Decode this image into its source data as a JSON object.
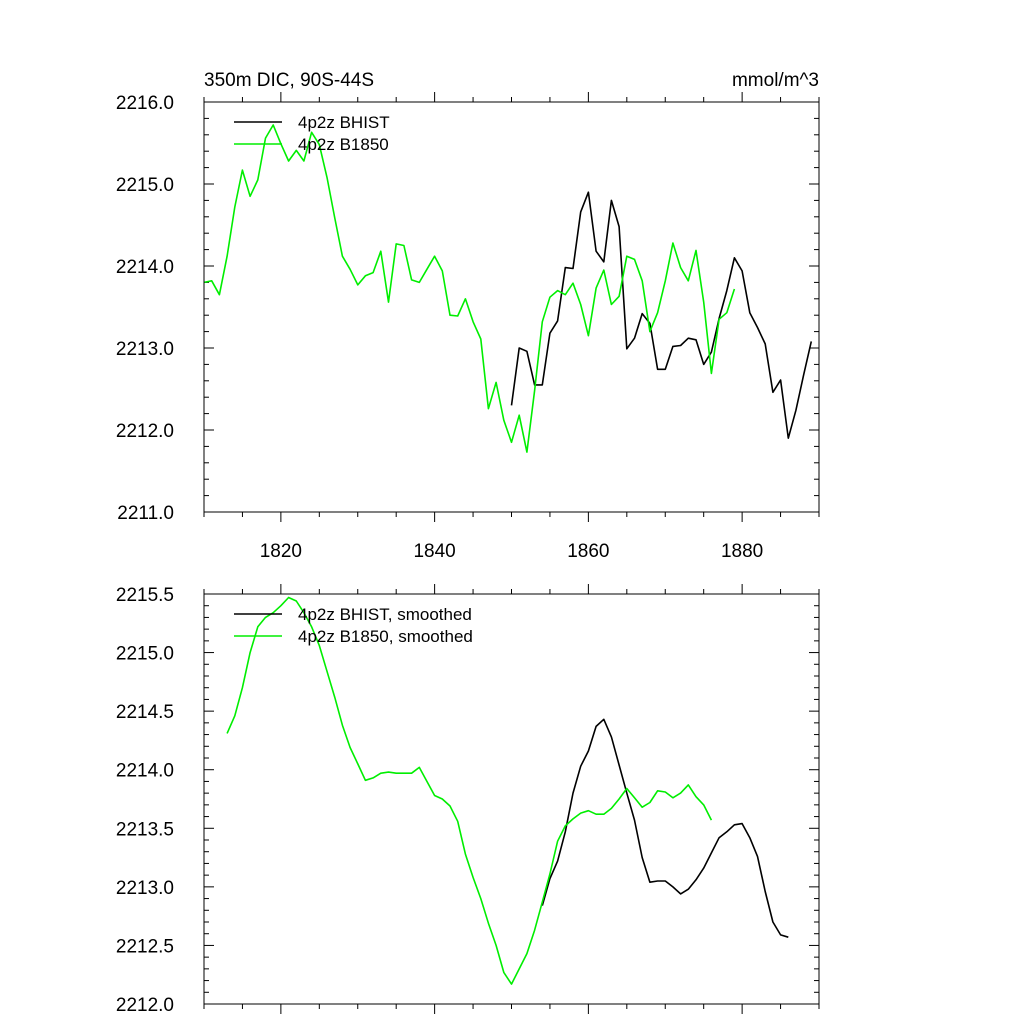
{
  "chart_data": [
    {
      "type": "line",
      "title_left": "350m DIC, 90S-44S",
      "title_right": "mmol/m^3",
      "xlim": [
        1810,
        1890
      ],
      "ylim": [
        2211.0,
        2216.0
      ],
      "xticks": [
        1820,
        1840,
        1860,
        1880
      ],
      "xtick_labels": [
        "1820",
        "1840",
        "1860",
        "1880"
      ],
      "yticks": [
        2211.0,
        2212.0,
        2213.0,
        2214.0,
        2215.0,
        2216.0
      ],
      "ytick_labels": [
        "2211.0",
        "2212.0",
        "2213.0",
        "2214.0",
        "2215.0",
        "2216.0"
      ],
      "grid": false,
      "legend_position": "top-left",
      "series": [
        {
          "name": "4p2z BHIST",
          "color": "#000000",
          "x": [
            1850,
            1851,
            1852,
            1853,
            1854,
            1855,
            1856,
            1857,
            1858,
            1859,
            1860,
            1861,
            1862,
            1863,
            1864,
            1865,
            1866,
            1867,
            1868,
            1869,
            1870,
            1871,
            1872,
            1873,
            1874,
            1875,
            1876,
            1877,
            1878,
            1879,
            1880,
            1881,
            1882,
            1883,
            1884,
            1885,
            1886,
            1887,
            1888,
            1889
          ],
          "y": [
            2212.3,
            2213.0,
            2212.96,
            2212.55,
            2212.55,
            2213.18,
            2213.33,
            2213.98,
            2213.97,
            2214.66,
            2214.9,
            2214.18,
            2214.05,
            2214.8,
            2214.48,
            2212.99,
            2213.12,
            2213.42,
            2213.3,
            2212.74,
            2212.74,
            2213.02,
            2213.03,
            2213.12,
            2213.1,
            2212.8,
            2212.95,
            2213.36,
            2213.7,
            2214.1,
            2213.94,
            2213.43,
            2213.25,
            2213.05,
            2212.46,
            2212.61,
            2211.9,
            2212.24,
            2212.67,
            2213.08
          ]
        },
        {
          "name": "4p2z B1850",
          "color": "#00ee00",
          "x": [
            1810,
            1811,
            1812,
            1813,
            1814,
            1815,
            1816,
            1817,
            1818,
            1819,
            1820,
            1821,
            1822,
            1823,
            1824,
            1825,
            1826,
            1827,
            1828,
            1829,
            1830,
            1831,
            1832,
            1833,
            1834,
            1835,
            1836,
            1837,
            1838,
            1839,
            1840,
            1841,
            1842,
            1843,
            1844,
            1845,
            1846,
            1847,
            1848,
            1849,
            1850,
            1851,
            1852,
            1853,
            1854,
            1855,
            1856,
            1857,
            1858,
            1859,
            1860,
            1861,
            1862,
            1863,
            1864,
            1865,
            1866,
            1867,
            1868,
            1869,
            1870,
            1871,
            1872,
            1873,
            1874,
            1875,
            1876,
            1877,
            1878,
            1879
          ],
          "y": [
            2213.8,
            2213.82,
            2213.65,
            2214.12,
            2214.72,
            2215.17,
            2214.85,
            2215.05,
            2215.56,
            2215.72,
            2215.49,
            2215.28,
            2215.41,
            2215.28,
            2215.63,
            2215.48,
            2215.08,
            2214.59,
            2214.12,
            2213.96,
            2213.77,
            2213.88,
            2213.92,
            2214.18,
            2213.56,
            2214.27,
            2214.25,
            2213.83,
            2213.8,
            2213.96,
            2214.12,
            2213.94,
            2213.4,
            2213.39,
            2213.6,
            2213.32,
            2213.11,
            2212.26,
            2212.58,
            2212.12,
            2211.85,
            2212.18,
            2211.73,
            2212.48,
            2213.32,
            2213.62,
            2213.7,
            2213.65,
            2213.79,
            2213.53,
            2213.15,
            2213.73,
            2213.95,
            2213.53,
            2213.63,
            2214.12,
            2214.08,
            2213.82,
            2213.2,
            2213.43,
            2213.82,
            2214.28,
            2213.98,
            2213.82,
            2214.19,
            2213.56,
            2212.69,
            2213.35,
            2213.43,
            2213.72
          ]
        }
      ]
    },
    {
      "type": "line",
      "xlim": [
        1810,
        1890
      ],
      "ylim": [
        2212.0,
        2215.5
      ],
      "xticks": [
        1820,
        1840,
        1860,
        1880
      ],
      "xtick_labels": [],
      "yticks": [
        2212.0,
        2212.5,
        2213.0,
        2213.5,
        2214.0,
        2214.5,
        2215.0,
        2215.5
      ],
      "ytick_labels": [
        "2212.0",
        "2212.5",
        "2213.0",
        "2213.5",
        "2214.0",
        "2214.5",
        "2215.0",
        "2215.5"
      ],
      "grid": false,
      "legend_position": "top-left",
      "series": [
        {
          "name": "4p2z BHIST, smoothed",
          "color": "#000000",
          "x": [
            1854,
            1855,
            1856,
            1857,
            1858,
            1859,
            1860,
            1861,
            1862,
            1863,
            1864,
            1865,
            1866,
            1867,
            1868,
            1869,
            1870,
            1871,
            1872,
            1873,
            1874,
            1875,
            1876,
            1877,
            1878,
            1879,
            1880,
            1881,
            1882,
            1883,
            1884,
            1885,
            1886
          ],
          "y": [
            2212.84,
            2213.07,
            2213.22,
            2213.47,
            2213.8,
            2214.03,
            2214.16,
            2214.37,
            2214.43,
            2214.28,
            2214.04,
            2213.8,
            2213.57,
            2213.25,
            2213.04,
            2213.05,
            2213.05,
            2213.0,
            2212.94,
            2212.98,
            2213.06,
            2213.16,
            2213.29,
            2213.42,
            2213.47,
            2213.53,
            2213.54,
            2213.42,
            2213.26,
            2212.96,
            2212.7,
            2212.59,
            2212.57
          ]
        },
        {
          "name": "4p2z B1850, smoothed",
          "color": "#00ee00",
          "x": [
            1813,
            1814,
            1815,
            1816,
            1817,
            1818,
            1819,
            1820,
            1821,
            1822,
            1823,
            1824,
            1825,
            1826,
            1827,
            1828,
            1829,
            1830,
            1831,
            1832,
            1833,
            1834,
            1835,
            1836,
            1837,
            1838,
            1839,
            1840,
            1841,
            1842,
            1843,
            1844,
            1845,
            1846,
            1847,
            1848,
            1849,
            1850,
            1851,
            1852,
            1853,
            1854,
            1855,
            1856,
            1857,
            1858,
            1859,
            1860,
            1861,
            1862,
            1863,
            1864,
            1865,
            1866,
            1867,
            1868,
            1869,
            1870,
            1871,
            1872,
            1873,
            1874,
            1875,
            1876
          ],
          "y": [
            2214.31,
            2214.46,
            2214.7,
            2215.0,
            2215.22,
            2215.3,
            2215.34,
            2215.4,
            2215.47,
            2215.44,
            2215.34,
            2215.22,
            2215.06,
            2214.84,
            2214.62,
            2214.38,
            2214.19,
            2214.05,
            2213.91,
            2213.93,
            2213.97,
            2213.98,
            2213.97,
            2213.97,
            2213.97,
            2214.02,
            2213.9,
            2213.78,
            2213.75,
            2213.69,
            2213.56,
            2213.28,
            2213.08,
            2212.9,
            2212.69,
            2212.5,
            2212.27,
            2212.17,
            2212.3,
            2212.43,
            2212.63,
            2212.87,
            2213.11,
            2213.39,
            2213.52,
            2213.58,
            2213.63,
            2213.65,
            2213.62,
            2213.62,
            2213.67,
            2213.75,
            2213.84,
            2213.76,
            2213.68,
            2213.72,
            2213.82,
            2213.81,
            2213.76,
            2213.8,
            2213.87,
            2213.77,
            2213.7,
            2213.57
          ]
        }
      ]
    }
  ]
}
